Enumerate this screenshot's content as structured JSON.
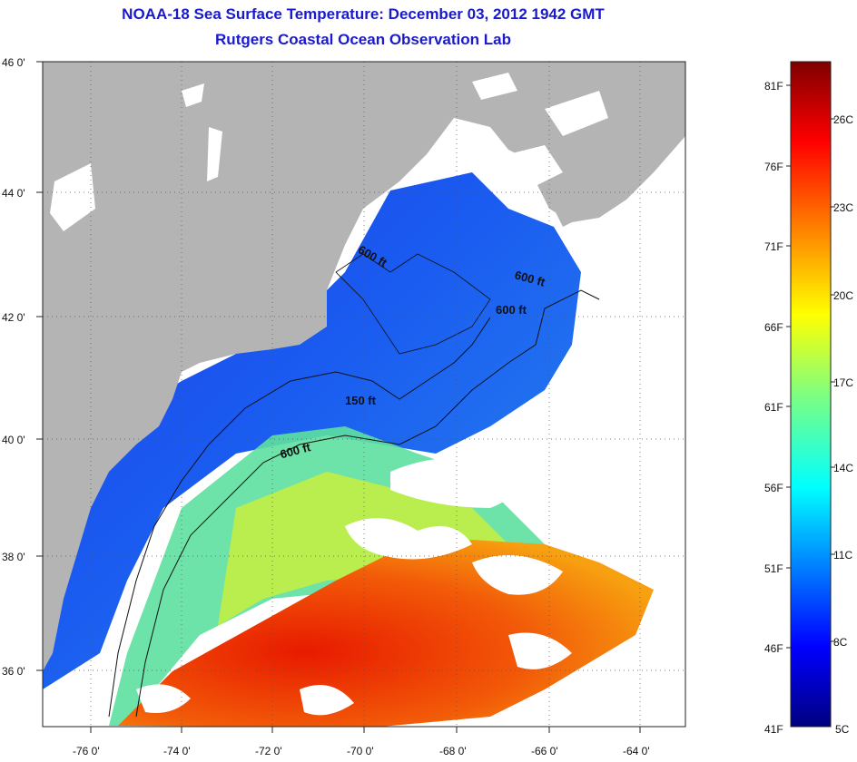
{
  "header": {
    "title": "NOAA-18 Sea Surface Temperature:  December 03, 2012 1942 GMT",
    "subtitle": "Rutgers Coastal Ocean Observation Lab"
  },
  "map": {
    "lat_ticks": [
      "46 0'",
      "44 0'",
      "42 0'",
      "40 0'",
      "38 0'",
      "36 0'"
    ],
    "lon_ticks": [
      "-76 0'",
      "-74 0'",
      "-72 0'",
      "-70 0'",
      "-68 0'",
      "-66 0'",
      "-64 0'"
    ],
    "contours": [
      "600 ft",
      "600 ft",
      "600 ft",
      "150 ft",
      "600 ft"
    ],
    "colors": {
      "land": "#b4b4b4",
      "cloud": "#ffffff",
      "cold": "#0033dd",
      "warm": "#ee3300"
    }
  },
  "colorbar": {
    "fahrenheit": [
      "81F",
      "76F",
      "71F",
      "66F",
      "61F",
      "56F",
      "51F",
      "46F",
      "41F"
    ],
    "celsius": [
      "26C",
      "23C",
      "20C",
      "17C",
      "14C",
      "11C",
      "8C",
      "5C"
    ]
  }
}
